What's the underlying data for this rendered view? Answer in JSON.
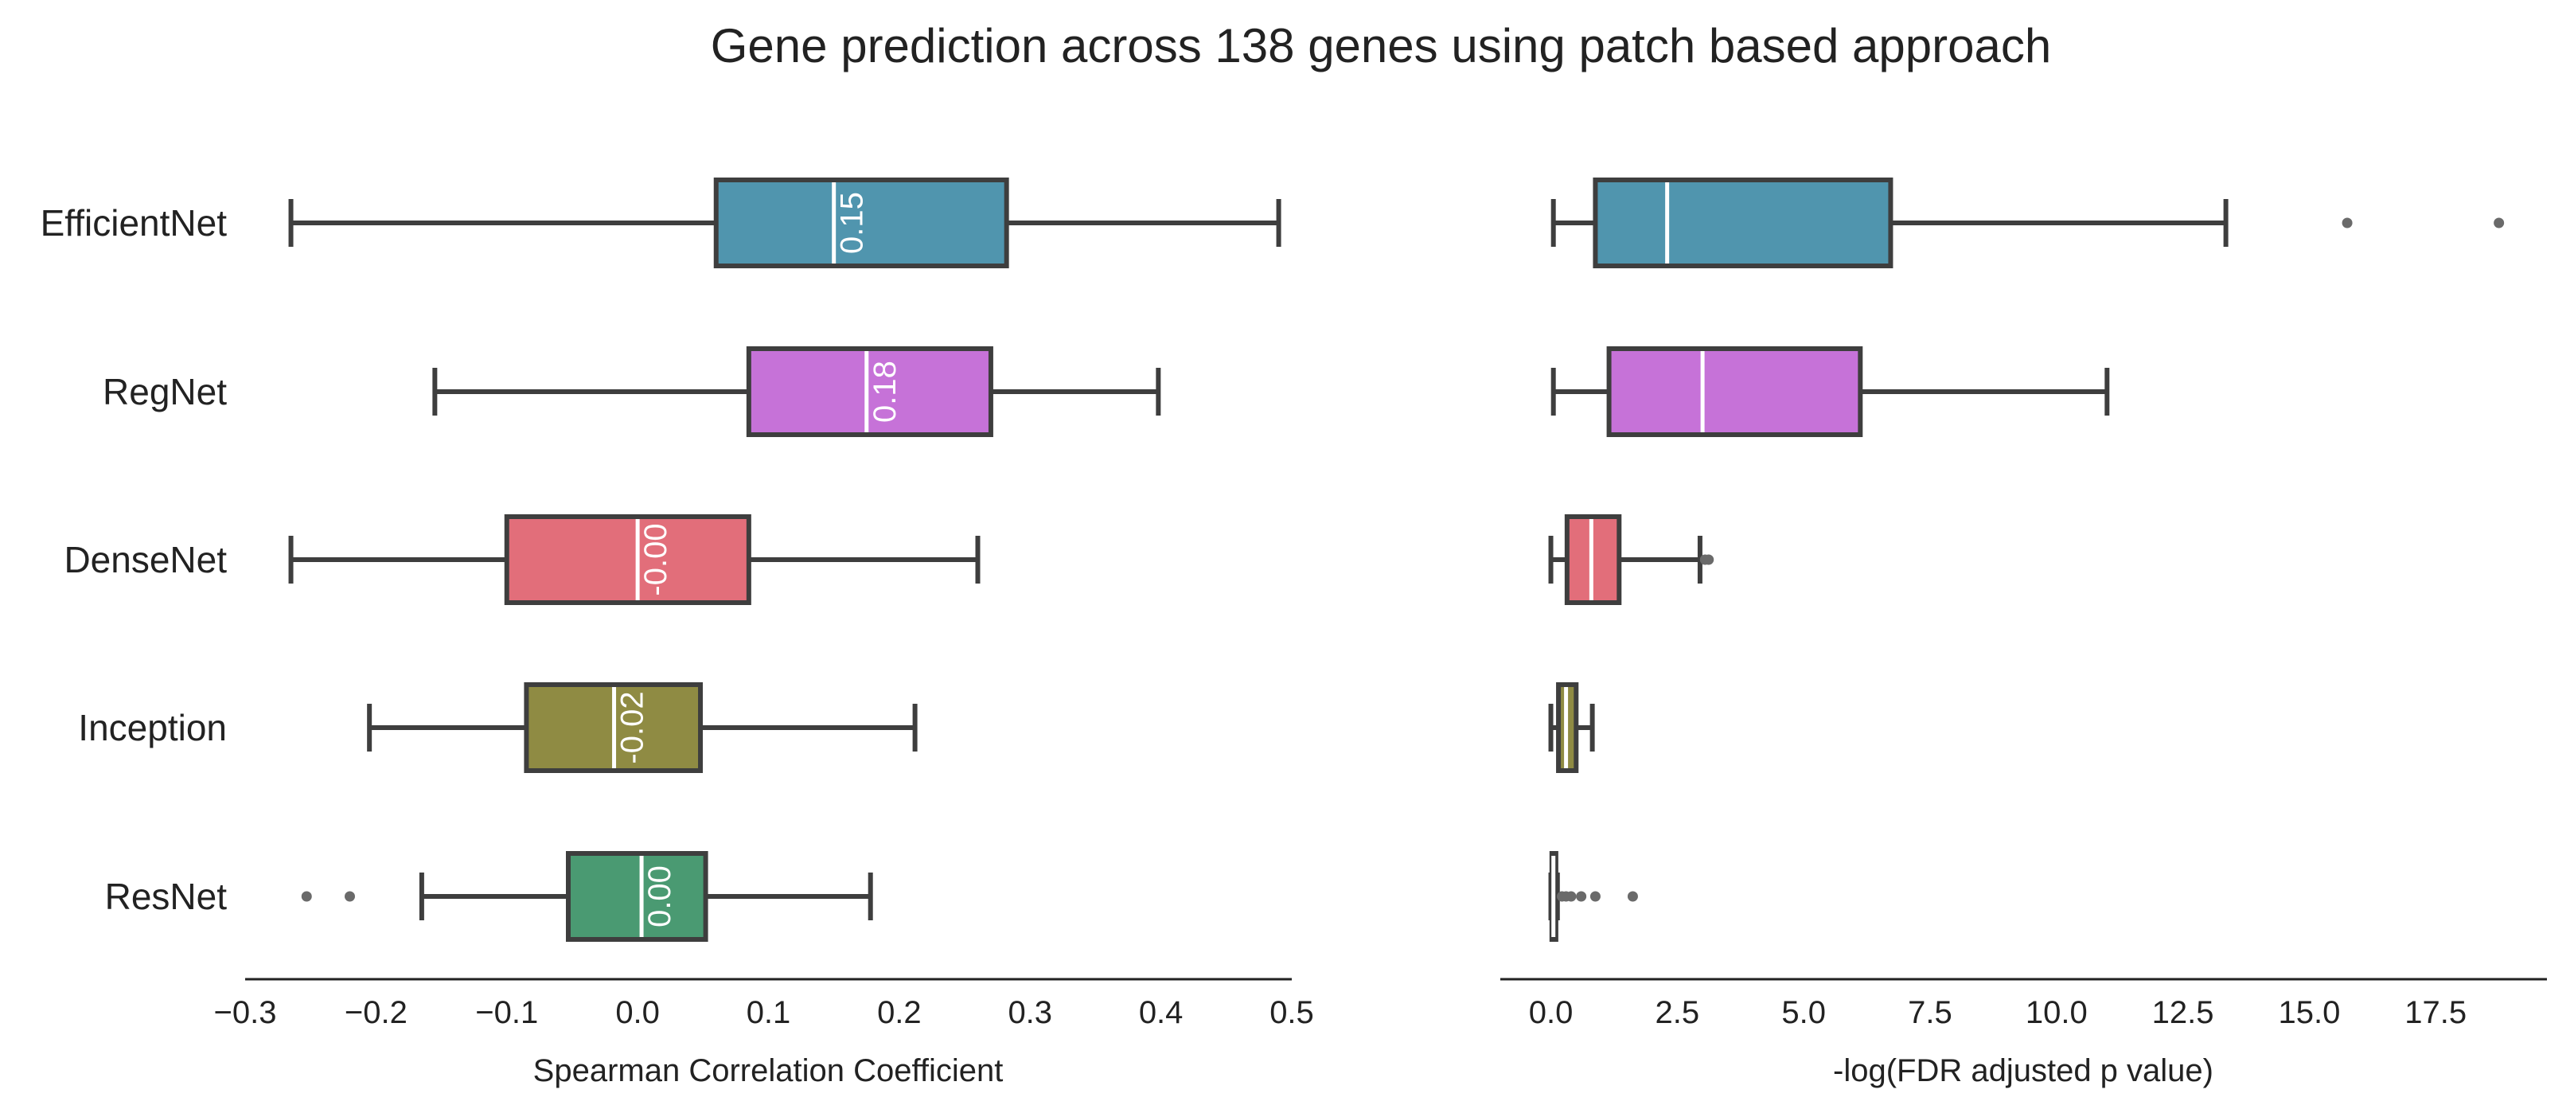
{
  "chart_data": {
    "type": "box",
    "title": "Gene prediction across 138 genes using patch based approach",
    "categories": [
      "EfficientNet",
      "RegNet",
      "DenseNet",
      "Inception",
      "ResNet"
    ],
    "colors": [
      "#5095ae",
      "#c672d8",
      "#e26e7a",
      "#8f8b43",
      "#4a9a72"
    ],
    "panels": [
      {
        "xlabel": "Spearman Correlation Coefficient",
        "xlim": [
          -0.3,
          0.5
        ],
        "ticks": [
          -0.3,
          -0.2,
          -0.1,
          0.0,
          0.1,
          0.2,
          0.3,
          0.4,
          0.5
        ],
        "tick_labels": [
          "−0.3",
          "−0.2",
          "−0.1",
          "0.0",
          "0.1",
          "0.2",
          "0.3",
          "0.4",
          "0.5"
        ],
        "boxes": [
          {
            "name": "EfficientNet",
            "whislo": -0.265,
            "q1": 0.06,
            "med": 0.15,
            "q3": 0.282,
            "whishi": 0.49,
            "fliers": [],
            "median_label": "0.15"
          },
          {
            "name": "RegNet",
            "whislo": -0.155,
            "q1": 0.085,
            "med": 0.175,
            "q3": 0.27,
            "whishi": 0.398,
            "fliers": [],
            "median_label": "0.18"
          },
          {
            "name": "DenseNet",
            "whislo": -0.265,
            "q1": -0.1,
            "med": 0.0,
            "q3": 0.085,
            "whishi": 0.26,
            "fliers": [],
            "median_label": "-0.00"
          },
          {
            "name": "Inception",
            "whislo": -0.205,
            "q1": -0.085,
            "med": -0.018,
            "q3": 0.048,
            "whishi": 0.212,
            "fliers": [],
            "median_label": "-0.02"
          },
          {
            "name": "ResNet",
            "whislo": -0.165,
            "q1": -0.053,
            "med": 0.003,
            "q3": 0.052,
            "whishi": 0.178,
            "fliers": [
              -0.253,
              -0.22
            ],
            "median_label": "0.00"
          }
        ]
      },
      {
        "xlabel": "-log(FDR adjusted p value)",
        "xlim": [
          -1.0,
          19.7
        ],
        "ticks": [
          0,
          2.5,
          5,
          7.5,
          10,
          12.5,
          15,
          17.5
        ],
        "tick_labels": [
          "0.0",
          "2.5",
          "5.0",
          "7.5",
          "10.0",
          "12.5",
          "15.0",
          "17.5"
        ],
        "boxes": [
          {
            "name": "EfficientNet",
            "whislo": 0.05,
            "q1": 0.88,
            "med": 2.3,
            "q3": 6.72,
            "whishi": 13.35,
            "fliers": [
              15.75,
              18.75
            ]
          },
          {
            "name": "RegNet",
            "whislo": 0.05,
            "q1": 1.15,
            "med": 3.0,
            "q3": 6.12,
            "whishi": 11.0,
            "fliers": []
          },
          {
            "name": "DenseNet",
            "whislo": 0.0,
            "q1": 0.32,
            "med": 0.8,
            "q3": 1.35,
            "whishi": 2.95,
            "fliers": [
              3.05,
              3.12
            ]
          },
          {
            "name": "Inception",
            "whislo": 0.0,
            "q1": 0.15,
            "med": 0.3,
            "q3": 0.5,
            "whishi": 0.82,
            "fliers": []
          },
          {
            "name": "ResNet",
            "whislo": 0.0,
            "q1": 0.02,
            "med": 0.05,
            "q3": 0.1,
            "whishi": 0.13,
            "fliers": [
              0.22,
              0.3,
              0.4,
              0.6,
              0.88,
              1.62
            ]
          }
        ]
      }
    ]
  }
}
